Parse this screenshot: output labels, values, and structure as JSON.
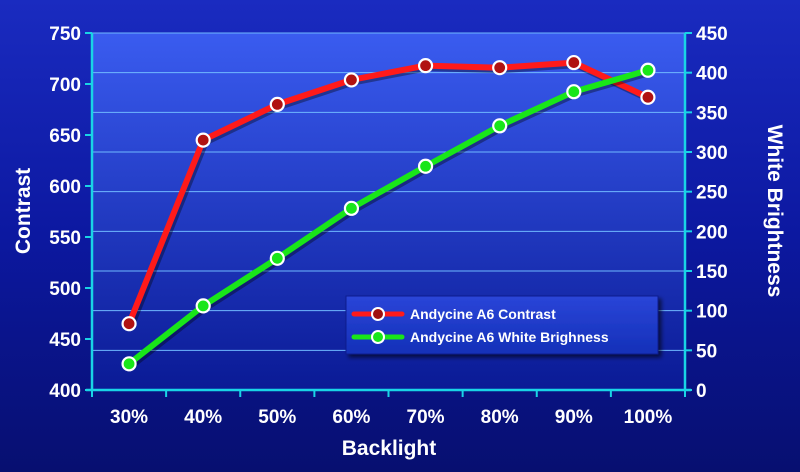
{
  "chart_data": {
    "type": "line",
    "categories": [
      "30%",
      "40%",
      "50%",
      "60%",
      "70%",
      "80%",
      "90%",
      "100%"
    ],
    "xlabel": "Backlight",
    "ylabel": "Contrast",
    "ylabel_right": "White Brightness",
    "ylim": [
      400,
      750
    ],
    "ylim_right": [
      0,
      450
    ],
    "yticks": [
      "400",
      "450",
      "500",
      "550",
      "600",
      "650",
      "700",
      "750"
    ],
    "yticks_right": [
      "0",
      "50",
      "100",
      "150",
      "200",
      "250",
      "300",
      "350",
      "400",
      "450"
    ],
    "grid": true,
    "legend_position": "bottom-right",
    "series": [
      {
        "name": "Andycine A6 Contrast",
        "axis": "left",
        "color": "#ff1a1a",
        "values": [
          465,
          645,
          680,
          704,
          718,
          716,
          721,
          687
        ]
      },
      {
        "name": "Andycine A6 White Brighness",
        "axis": "right",
        "color": "#19e619",
        "values": [
          33,
          106,
          166,
          229,
          282,
          333,
          376,
          403
        ]
      }
    ]
  }
}
